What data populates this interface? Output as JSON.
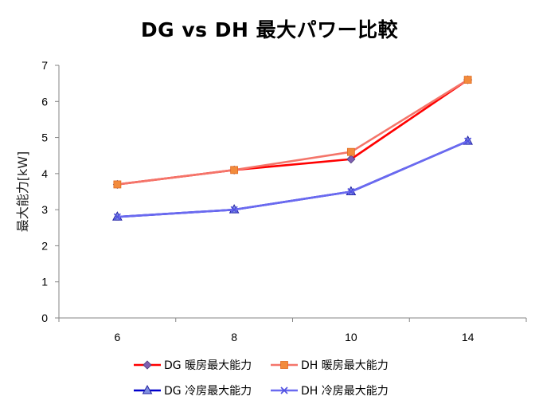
{
  "chart_data": {
    "type": "line",
    "title": "DG vs DH 最大パワー比較",
    "xlabel": "",
    "ylabel": "最大能力[kW]",
    "categories": [
      "6",
      "8",
      "10",
      "14"
    ],
    "ylim": [
      0,
      7
    ],
    "yticks": [
      0,
      1,
      2,
      3,
      4,
      5,
      6,
      7
    ],
    "grid": false,
    "legend_position": "bottom",
    "series": [
      {
        "name": "DG 暖房最大能力",
        "values": [
          3.7,
          4.1,
          4.4,
          6.6
        ],
        "color": "#FF0000",
        "marker": "diamond",
        "marker_color": "#7F5FB0"
      },
      {
        "name": "DH 暖房最大能力",
        "values": [
          3.7,
          4.1,
          4.6,
          6.6
        ],
        "color": "#F4756A",
        "marker": "square",
        "marker_color": "#F28B3C"
      },
      {
        "name": "DG 冷房最大能力",
        "values": [
          2.8,
          3.0,
          3.5,
          4.9
        ],
        "color": "#0000CC",
        "marker": "triangle",
        "marker_color": "#7F8FE0"
      },
      {
        "name": "DH 冷房最大能力",
        "values": [
          2.8,
          3.0,
          3.5,
          4.9
        ],
        "color": "#6A6AF0",
        "marker": "x",
        "marker_color": "#5050E0"
      }
    ]
  }
}
